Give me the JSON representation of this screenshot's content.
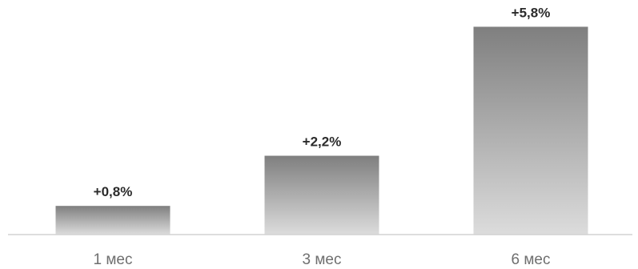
{
  "chart_data": {
    "type": "bar",
    "categories": [
      "1 мес",
      "3 мес",
      "6 мес"
    ],
    "values": [
      0.8,
      2.2,
      5.8
    ],
    "value_labels": [
      "+0,8%",
      "+2,2%",
      "+5,8%"
    ],
    "title": "",
    "xlabel": "",
    "ylabel": "",
    "ylim": [
      0,
      6.1
    ],
    "grid": false,
    "legend": "none",
    "colors": {
      "bar_top": "#7f7f7f",
      "bar_bottom": "#dcdcdc",
      "axis": "#d2d2d2",
      "value_text": "#2b2b2b",
      "tick_text": "#6f6f6f"
    }
  }
}
